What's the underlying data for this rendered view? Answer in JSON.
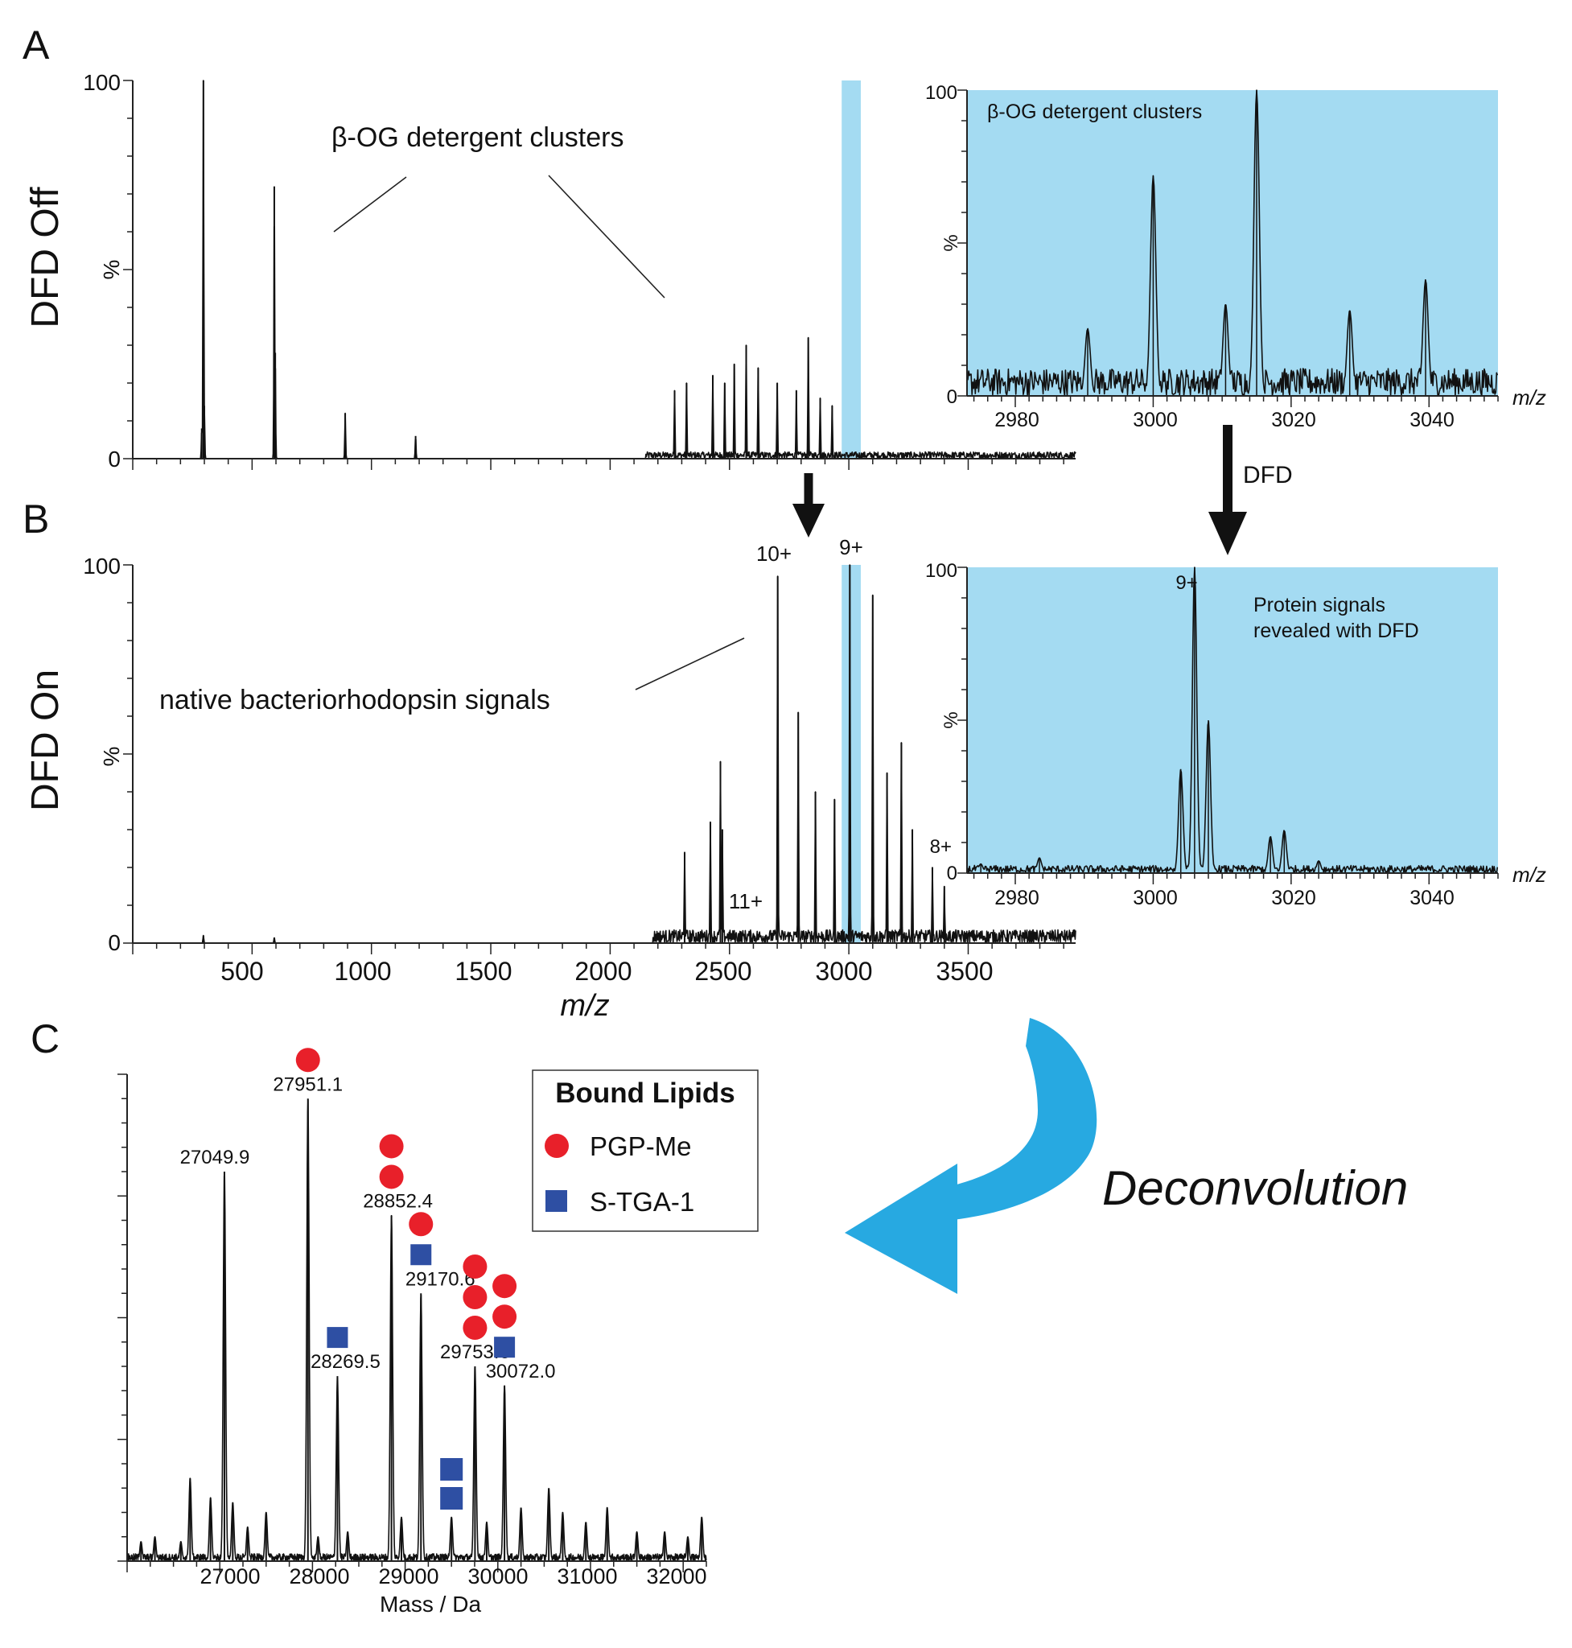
{
  "colors": {
    "highlight": "#a4dbf2",
    "arrow": "#27a9e1",
    "pgp_me": "#e8202a",
    "s_tga1": "#2e4fa3",
    "trace": "#111111"
  },
  "panel_a": {
    "letter": "A",
    "side_label": "DFD Off",
    "y_unit": "%",
    "y_ticks": [
      "100",
      "0"
    ],
    "annotation": "β-OG detergent clusters",
    "inset": {
      "annotation": "β-OG detergent clusters",
      "y_unit": "%",
      "y_ticks": [
        "100",
        "0"
      ],
      "x_ticks": [
        "2980",
        "3000",
        "3020",
        "3040"
      ],
      "x_unit": "m/z"
    }
  },
  "panel_b": {
    "letter": "B",
    "side_label": "DFD On",
    "y_unit": "%",
    "y_ticks": [
      "100",
      "0"
    ],
    "annotation": "native bacteriorhodopsin signals",
    "x_ticks": [
      "500",
      "1000",
      "1500",
      "2000",
      "2500",
      "3000",
      "3500"
    ],
    "x_unit": "m/z",
    "charge_states": [
      "10+",
      "9+",
      "11+"
    ],
    "inset": {
      "annotation_line1": "Protein signals",
      "annotation_line2": "revealed with DFD",
      "y_unit": "%",
      "y_ticks": [
        "100",
        "0"
      ],
      "x_ticks": [
        "2980",
        "3000",
        "3020",
        "3040"
      ],
      "x_unit": "m/z",
      "charge_labels": [
        "9+",
        "8+"
      ]
    }
  },
  "dfd_arrow_label": "DFD",
  "deconvolution_label": "Deconvolution",
  "panel_c": {
    "letter": "C",
    "x_ticks": [
      "27000",
      "28000",
      "29000",
      "30000",
      "31000",
      "32000"
    ],
    "x_label": "Mass / Da",
    "legend_title": "Bound Lipids",
    "legend_items": [
      "PGP-Me",
      "S-TGA-1"
    ]
  },
  "chart_data": [
    {
      "type": "line",
      "title": "",
      "panel": "A",
      "xlabel": "m/z",
      "ylabel": "%",
      "xlim": [
        0,
        3950
      ],
      "ylim": [
        0,
        100
      ],
      "highlight_range": [
        2970,
        3050
      ],
      "peaks": [
        [
          289,
          8
        ],
        [
          296,
          100
        ],
        [
          300,
          14
        ],
        [
          593,
          72
        ],
        [
          597,
          28
        ],
        [
          890,
          12
        ],
        [
          1185,
          6
        ],
        [
          2270,
          18
        ],
        [
          2320,
          20
        ],
        [
          2430,
          22
        ],
        [
          2480,
          20
        ],
        [
          2520,
          25
        ],
        [
          2570,
          30
        ],
        [
          2620,
          24
        ],
        [
          2700,
          20
        ],
        [
          2780,
          18
        ],
        [
          2830,
          32
        ],
        [
          2880,
          16
        ],
        [
          2930,
          14
        ]
      ]
    },
    {
      "type": "line",
      "title": "",
      "panel": "A inset",
      "xlabel": "m/z",
      "ylabel": "%",
      "xlim": [
        2973,
        3050
      ],
      "ylim": [
        0,
        100
      ],
      "peaks": [
        [
          2990.5,
          22
        ],
        [
          3000,
          72
        ],
        [
          3010.5,
          30
        ],
        [
          3015,
          100
        ],
        [
          3028.5,
          28
        ],
        [
          3039.5,
          38
        ]
      ]
    },
    {
      "type": "line",
      "title": "",
      "panel": "B",
      "xlabel": "m/z",
      "ylabel": "%",
      "xlim": [
        0,
        3950
      ],
      "ylim": [
        0,
        100
      ],
      "highlight_range": [
        2970,
        3050
      ],
      "annotations": [
        {
          "text": "10+",
          "x": 2702,
          "y": 97
        },
        {
          "text": "9+",
          "x": 3004,
          "y": 100
        },
        {
          "text": "11+",
          "x": 2462,
          "y": 37
        }
      ],
      "peaks": [
        [
          296,
          2
        ],
        [
          593,
          1.5
        ],
        [
          2312,
          24
        ],
        [
          2420,
          32
        ],
        [
          2462,
          48
        ],
        [
          2470,
          30
        ],
        [
          2702,
          97
        ],
        [
          2788,
          61
        ],
        [
          2860,
          40
        ],
        [
          2940,
          38
        ],
        [
          3004,
          100
        ],
        [
          3100,
          92
        ],
        [
          3160,
          45
        ],
        [
          3220,
          53
        ],
        [
          3266,
          30
        ],
        [
          3350,
          20
        ],
        [
          3400,
          15
        ]
      ]
    },
    {
      "type": "line",
      "title": "",
      "panel": "B inset",
      "xlabel": "m/z",
      "ylabel": "%",
      "xlim": [
        2973,
        3050
      ],
      "ylim": [
        0,
        100
      ],
      "annotations": [
        {
          "text": "9+",
          "x": 3006,
          "y": 100
        },
        {
          "text": "8+",
          "x": 2975,
          "y": 8
        }
      ],
      "peaks": [
        [
          2975,
          3
        ],
        [
          2983.5,
          5
        ],
        [
          3004,
          34
        ],
        [
          3006,
          100
        ],
        [
          3008,
          50
        ],
        [
          3017,
          12
        ],
        [
          3019,
          14
        ],
        [
          3024,
          4
        ]
      ]
    },
    {
      "type": "line",
      "title": "",
      "panel": "C",
      "xlabel": "Mass / Da",
      "ylabel": "",
      "xlim": [
        26000,
        32250
      ],
      "ylim": [
        0,
        100
      ],
      "annotations": [
        {
          "text": "27049.9",
          "x": 27049.9,
          "y": 80,
          "lipids": []
        },
        {
          "text": "27951.1",
          "x": 27951.1,
          "y": 95,
          "lipids": [
            "PGP-Me"
          ]
        },
        {
          "text": "28269.5",
          "x": 28269.5,
          "y": 38,
          "lipids": [
            "S-TGA-1"
          ]
        },
        {
          "text": "28852.4",
          "x": 28852.4,
          "y": 71,
          "lipids": [
            "PGP-Me",
            "PGP-Me"
          ]
        },
        {
          "text": "29170.6",
          "x": 29170.6,
          "y": 55,
          "lipids": [
            "PGP-Me",
            "S-TGA-1"
          ]
        },
        {
          "text": "29753.6",
          "x": 29753.6,
          "y": 40,
          "lipids": [
            "PGP-Me",
            "PGP-Me",
            "PGP-Me"
          ]
        },
        {
          "text": "30072.0",
          "x": 30072.0,
          "y": 36,
          "lipids": [
            "PGP-Me",
            "PGP-Me",
            "S-TGA-1"
          ]
        }
      ],
      "extra_marker": {
        "x": 29500,
        "lipids": [
          "S-TGA-1",
          "S-TGA-1"
        ]
      },
      "peaks": [
        [
          26150,
          4
        ],
        [
          26300,
          5
        ],
        [
          26580,
          4
        ],
        [
          26680,
          17
        ],
        [
          26900,
          13
        ],
        [
          27049.9,
          80
        ],
        [
          27140,
          12
        ],
        [
          27300,
          7
        ],
        [
          27500,
          10
        ],
        [
          27951.1,
          95
        ],
        [
          28060,
          5
        ],
        [
          28269.5,
          38
        ],
        [
          28380,
          6
        ],
        [
          28852.4,
          71
        ],
        [
          28960,
          9
        ],
        [
          29170.6,
          55
        ],
        [
          29500,
          9
        ],
        [
          29753.6,
          40
        ],
        [
          29880,
          8
        ],
        [
          30072.0,
          36
        ],
        [
          30250,
          11
        ],
        [
          30550,
          15
        ],
        [
          30700,
          10
        ],
        [
          30950,
          8
        ],
        [
          31180,
          11
        ],
        [
          31500,
          6
        ],
        [
          31800,
          6
        ],
        [
          32050,
          5
        ],
        [
          32200,
          9
        ]
      ]
    }
  ]
}
